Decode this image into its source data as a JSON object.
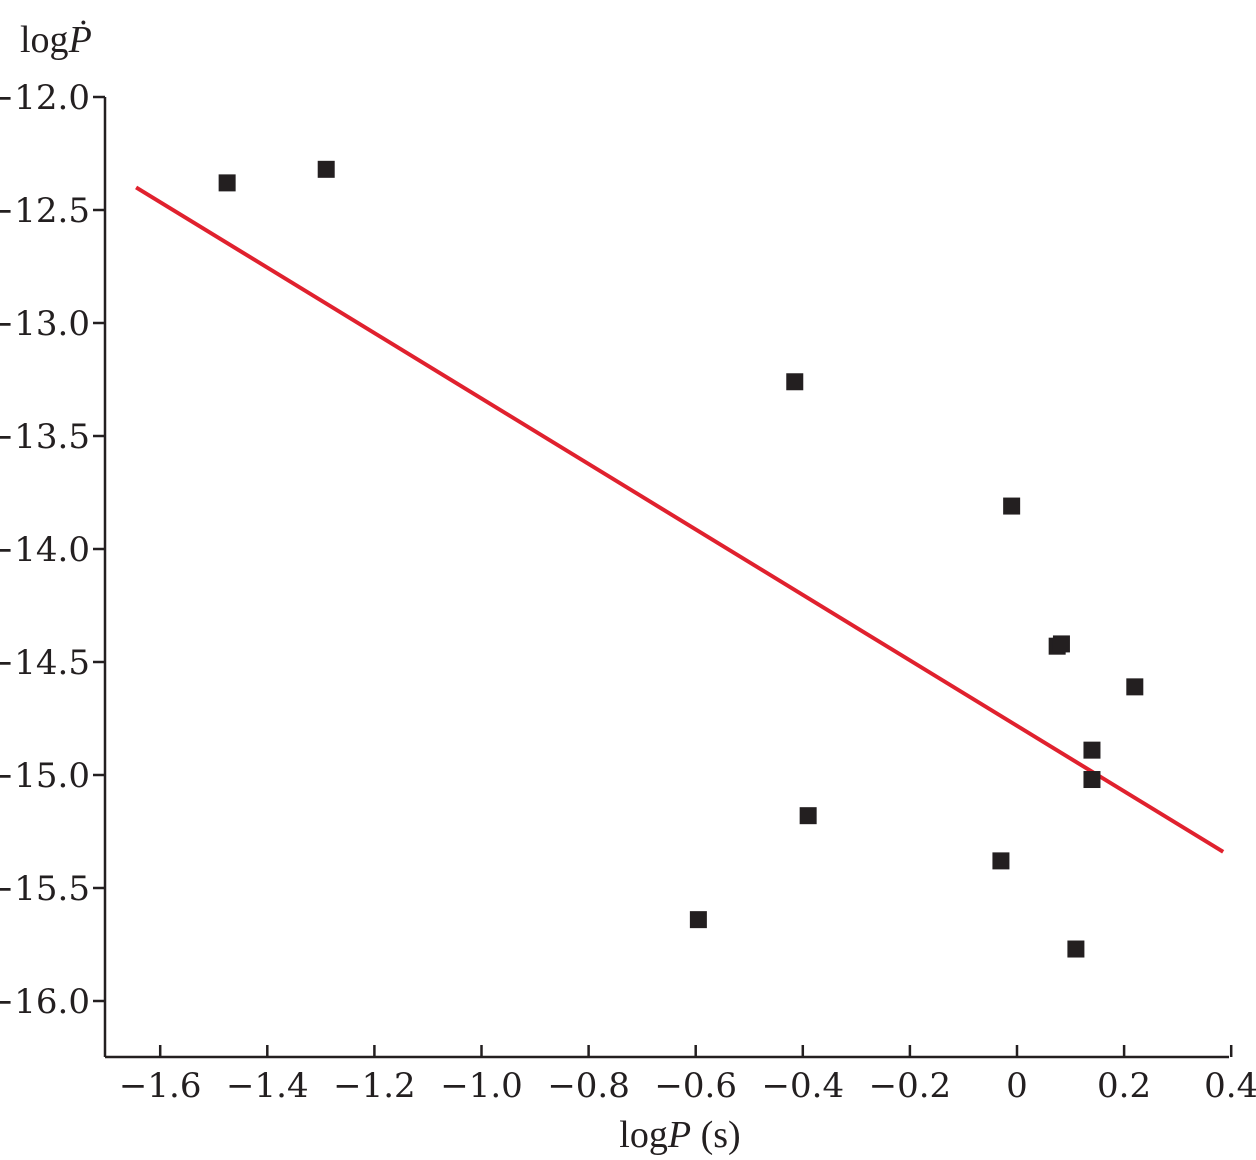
{
  "chart_data": {
    "type": "scatter",
    "xlabel_prefix": "log",
    "xlabel_var": "P",
    "xlabel_unit": " (s)",
    "ylabel_prefix": "log",
    "ylabel_var": "Ṗ",
    "xlim": [
      -1.7,
      0.4
    ],
    "ylim": [
      -16.25,
      -12.0
    ],
    "x_ticks": [
      -1.6,
      -1.4,
      -1.2,
      -1.0,
      -0.8,
      -0.6,
      -0.4,
      -0.2,
      0,
      0.2,
      0.4
    ],
    "x_tick_labels": [
      "−1.6",
      "−1.4",
      "−1.2",
      "−1.0",
      "−0.8",
      "−0.6",
      "−0.4",
      "−0.2",
      "0",
      "0.2",
      "0.4"
    ],
    "y_ticks": [
      -12.0,
      -12.5,
      -13.0,
      -13.5,
      -14.0,
      -14.5,
      -15.0,
      -15.5,
      -16.0
    ],
    "y_tick_labels": [
      "−12.0",
      "−12.5",
      "−13.0",
      "−13.5",
      "−14.0",
      "−14.5",
      "−15.0",
      "−15.5",
      "−16.0"
    ],
    "grid": false,
    "series": [
      {
        "marker": "square",
        "color": "#231f20",
        "points": [
          {
            "x": -1.475,
            "y": -12.38
          },
          {
            "x": -1.29,
            "y": -12.32
          },
          {
            "x": -0.415,
            "y": -13.26
          },
          {
            "x": -0.01,
            "y": -13.81
          },
          {
            "x": 0.075,
            "y": -14.43
          },
          {
            "x": 0.083,
            "y": -14.42
          },
          {
            "x": 0.22,
            "y": -14.61
          },
          {
            "x": 0.14,
            "y": -14.89
          },
          {
            "x": 0.14,
            "y": -15.02
          },
          {
            "x": -0.39,
            "y": -15.18
          },
          {
            "x": -0.03,
            "y": -15.38
          },
          {
            "x": -0.595,
            "y": -15.64
          },
          {
            "x": 0.11,
            "y": -15.77
          }
        ]
      }
    ],
    "fit_line": {
      "color": "#e0212e",
      "x": [
        -1.645,
        0.385
      ],
      "y": [
        -12.4,
        -15.34
      ]
    }
  }
}
